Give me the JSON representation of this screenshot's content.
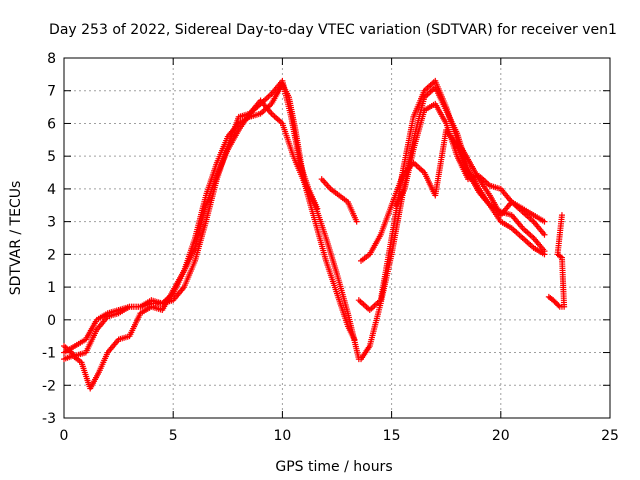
{
  "chart_data": {
    "type": "scatter",
    "title": "Day 253 of 2022, Sidereal Day-to-day VTEC variation (SDTVAR) for receiver ven1",
    "xlabel": "GPS time / hours",
    "ylabel": "SDTVAR / TECUs",
    "xlim": [
      0,
      25
    ],
    "ylim": [
      -3,
      8
    ],
    "xticks": [
      0,
      5,
      10,
      15,
      20,
      25
    ],
    "yticks": [
      -3,
      -2,
      -1,
      0,
      1,
      2,
      3,
      4,
      5,
      6,
      7,
      8
    ],
    "grid": true,
    "marker": "+",
    "color": "#ff0000",
    "series": [
      {
        "x": [
          0.0,
          0.5,
          1.0,
          1.5,
          2.0,
          2.5,
          3.0,
          3.5,
          4.0,
          4.5,
          5.0,
          5.5,
          6.0,
          6.5,
          7.0,
          7.5,
          8.0,
          8.5,
          9.0,
          9.5,
          10.0,
          10.3,
          10.6,
          11.0,
          11.5,
          12.0,
          12.5,
          13.0,
          13.3
        ],
        "y": [
          -1.0,
          -0.8,
          -0.6,
          0.0,
          0.2,
          0.3,
          0.4,
          0.4,
          0.5,
          0.5,
          0.8,
          1.5,
          2.5,
          3.8,
          4.8,
          5.6,
          6.0,
          6.2,
          6.3,
          6.6,
          7.2,
          6.8,
          5.8,
          4.2,
          3.0,
          1.8,
          0.8,
          -0.2,
          -0.6
        ]
      },
      {
        "x": [
          0.0,
          0.5,
          1.0,
          1.5,
          2.0,
          2.5,
          3.0,
          3.5,
          4.0,
          4.5,
          5.0,
          5.5,
          6.0,
          6.5,
          7.0,
          7.5,
          8.0,
          8.5,
          9.0,
          9.5,
          10.0,
          10.4,
          10.8,
          11.2,
          11.6
        ],
        "y": [
          -0.8,
          -1.1,
          -1.0,
          -0.3,
          0.1,
          0.2,
          0.4,
          0.4,
          0.6,
          0.5,
          0.6,
          1.0,
          1.8,
          3.0,
          4.3,
          5.3,
          6.2,
          6.3,
          6.6,
          6.9,
          7.3,
          6.2,
          4.8,
          4.0,
          3.4
        ]
      },
      {
        "x": [
          0.0,
          0.4,
          0.8,
          1.2,
          1.6,
          2.0,
          2.5,
          3.0,
          3.5,
          4.0,
          4.5,
          5.0,
          5.5,
          6.0,
          6.5,
          7.0,
          7.5,
          8.0,
          8.5,
          9.0,
          9.5,
          10.0,
          10.5,
          11.0,
          11.5,
          12.0,
          12.5,
          13.0,
          13.5
        ],
        "y": [
          -1.2,
          -1.1,
          -1.3,
          -2.1,
          -1.6,
          -1.0,
          -0.6,
          -0.5,
          0.2,
          0.4,
          0.3,
          0.9,
          1.5,
          2.2,
          3.5,
          4.4,
          5.2,
          5.8,
          6.3,
          6.7,
          6.3,
          6.0,
          5.0,
          4.2,
          3.5,
          2.5,
          1.4,
          0.2,
          -1.2
        ]
      },
      {
        "x": [
          13.5,
          14.0,
          14.5,
          15.0,
          15.5,
          16.0,
          16.5,
          17.0,
          17.5,
          18.0,
          18.5,
          19.0,
          19.5,
          20.0,
          20.5,
          21.0,
          21.5,
          22.0
        ],
        "y": [
          0.6,
          0.3,
          0.6,
          2.5,
          4.5,
          6.2,
          7.0,
          7.3,
          6.5,
          5.5,
          4.9,
          4.3,
          3.8,
          3.2,
          3.6,
          3.3,
          3.0,
          2.6
        ]
      },
      {
        "x": [
          13.6,
          14.0,
          14.5,
          15.0,
          15.5,
          16.0,
          16.5,
          17.0,
          17.5,
          18.0,
          18.5,
          19.0,
          19.5,
          20.0,
          20.5,
          21.0,
          21.5,
          22.0
        ],
        "y": [
          -1.2,
          -0.8,
          0.5,
          2.0,
          3.8,
          5.5,
          6.8,
          7.1,
          6.4,
          5.7,
          4.6,
          4.0,
          3.5,
          3.0,
          2.8,
          2.5,
          2.2,
          2.0
        ]
      },
      {
        "x": [
          13.6,
          14.0,
          14.5,
          15.0,
          15.5,
          16.0,
          16.5,
          17.0,
          17.5,
          18.0,
          18.5,
          19.0,
          19.5,
          20.0,
          20.5,
          21.0,
          21.5,
          22.0
        ],
        "y": [
          1.8,
          2.0,
          2.6,
          3.5,
          4.4,
          4.8,
          4.5,
          3.8,
          5.8,
          5.3,
          4.5,
          3.9,
          3.5,
          3.3,
          3.2,
          2.8,
          2.5,
          2.1
        ]
      },
      {
        "x": [
          15.2,
          15.6,
          16.0,
          16.5,
          17.0,
          17.5,
          18.0,
          18.5,
          19.0,
          19.5,
          20.0,
          20.5,
          21.0,
          21.5,
          22.0
        ],
        "y": [
          3.5,
          4.0,
          5.2,
          6.4,
          6.6,
          6.0,
          5.0,
          4.3,
          4.4,
          4.1,
          4.0,
          3.6,
          3.4,
          3.2,
          3.0
        ]
      },
      {
        "x": [
          11.8,
          12.2,
          12.6,
          13.0,
          13.4
        ],
        "y": [
          4.3,
          4.0,
          3.8,
          3.6,
          3.0
        ]
      },
      {
        "x": [
          22.2,
          22.4,
          22.7,
          22.9,
          22.8,
          22.6,
          22.8
        ],
        "y": [
          0.7,
          0.6,
          0.4,
          0.4,
          1.9,
          2.0,
          3.2
        ]
      }
    ]
  }
}
